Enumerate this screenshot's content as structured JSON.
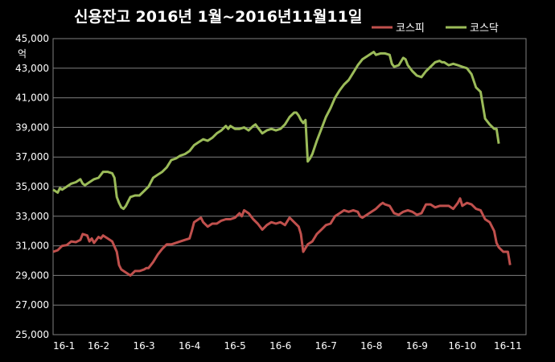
{
  "chart_data": {
    "type": "line",
    "title": "신용잔고  2016년 1월~2016년11월11일",
    "ylabel": "억",
    "xlabel": "",
    "ylim": [
      25000,
      45000
    ],
    "yticks": [
      25000,
      27000,
      29000,
      31000,
      33000,
      35000,
      37000,
      39000,
      41000,
      43000,
      45000
    ],
    "ytick_labels": [
      "25,000",
      "27,000",
      "29,000",
      "31,000",
      "33,000",
      "35,000",
      "37,000",
      "39,000",
      "41,000",
      "43,000",
      "45,000"
    ],
    "x_categories": [
      "16-1",
      "16-2",
      "16-3",
      "16-4",
      "16-5",
      "16-6",
      "16-7",
      "16-8",
      "16-9",
      "16-10",
      "16-11"
    ],
    "x_range": [
      0,
      10.4
    ],
    "grid": true,
    "legend_position": "top-right",
    "background_color": "#000000",
    "grid_color": "#7f7f7f",
    "text_color": "#ffffff",
    "series": [
      {
        "name": "코스피",
        "color": "#c0504d",
        "points": [
          [
            0.0,
            30600
          ],
          [
            0.1,
            30700
          ],
          [
            0.2,
            31000
          ],
          [
            0.3,
            31050
          ],
          [
            0.4,
            31300
          ],
          [
            0.5,
            31250
          ],
          [
            0.6,
            31400
          ],
          [
            0.65,
            31800
          ],
          [
            0.75,
            31700
          ],
          [
            0.8,
            31300
          ],
          [
            0.85,
            31500
          ],
          [
            0.9,
            31200
          ],
          [
            1.0,
            31600
          ],
          [
            1.05,
            31500
          ],
          [
            1.1,
            31700
          ],
          [
            1.2,
            31500
          ],
          [
            1.3,
            31300
          ],
          [
            1.4,
            30600
          ],
          [
            1.45,
            29700
          ],
          [
            1.5,
            29400
          ],
          [
            1.6,
            29200
          ],
          [
            1.7,
            29000
          ],
          [
            1.8,
            29300
          ],
          [
            1.9,
            29300
          ],
          [
            2.0,
            29400
          ],
          [
            2.05,
            29500
          ],
          [
            2.1,
            29500
          ],
          [
            2.2,
            29900
          ],
          [
            2.3,
            30400
          ],
          [
            2.4,
            30800
          ],
          [
            2.5,
            31100
          ],
          [
            2.6,
            31100
          ],
          [
            2.7,
            31200
          ],
          [
            2.8,
            31300
          ],
          [
            2.9,
            31400
          ],
          [
            3.0,
            31500
          ],
          [
            3.05,
            32000
          ],
          [
            3.1,
            32600
          ],
          [
            3.2,
            32800
          ],
          [
            3.25,
            32900
          ],
          [
            3.3,
            32600
          ],
          [
            3.4,
            32300
          ],
          [
            3.5,
            32500
          ],
          [
            3.6,
            32500
          ],
          [
            3.7,
            32700
          ],
          [
            3.8,
            32800
          ],
          [
            3.9,
            32800
          ],
          [
            4.0,
            32900
          ],
          [
            4.1,
            33200
          ],
          [
            4.15,
            33000
          ],
          [
            4.2,
            33400
          ],
          [
            4.3,
            33200
          ],
          [
            4.4,
            32800
          ],
          [
            4.5,
            32500
          ],
          [
            4.6,
            32100
          ],
          [
            4.7,
            32400
          ],
          [
            4.8,
            32600
          ],
          [
            4.9,
            32500
          ],
          [
            5.0,
            32600
          ],
          [
            5.1,
            32400
          ],
          [
            5.2,
            32900
          ],
          [
            5.3,
            32600
          ],
          [
            5.4,
            32300
          ],
          [
            5.45,
            31800
          ],
          [
            5.5,
            30600
          ],
          [
            5.6,
            31100
          ],
          [
            5.7,
            31300
          ],
          [
            5.8,
            31800
          ],
          [
            5.9,
            32100
          ],
          [
            6.0,
            32400
          ],
          [
            6.1,
            32500
          ],
          [
            6.2,
            33000
          ],
          [
            6.3,
            33200
          ],
          [
            6.4,
            33400
          ],
          [
            6.5,
            33300
          ],
          [
            6.6,
            33400
          ],
          [
            6.7,
            33300
          ],
          [
            6.75,
            33000
          ],
          [
            6.8,
            32900
          ],
          [
            6.9,
            33100
          ],
          [
            7.0,
            33300
          ],
          [
            7.1,
            33500
          ],
          [
            7.2,
            33800
          ],
          [
            7.25,
            33900
          ],
          [
            7.3,
            33800
          ],
          [
            7.4,
            33700
          ],
          [
            7.5,
            33200
          ],
          [
            7.6,
            33100
          ],
          [
            7.7,
            33300
          ],
          [
            7.8,
            33400
          ],
          [
            7.9,
            33300
          ],
          [
            8.0,
            33100
          ],
          [
            8.1,
            33200
          ],
          [
            8.2,
            33800
          ],
          [
            8.3,
            33800
          ],
          [
            8.4,
            33600
          ],
          [
            8.5,
            33700
          ],
          [
            8.6,
            33700
          ],
          [
            8.7,
            33700
          ],
          [
            8.8,
            33500
          ],
          [
            8.9,
            33900
          ],
          [
            8.95,
            34200
          ],
          [
            9.0,
            33700
          ],
          [
            9.1,
            33900
          ],
          [
            9.2,
            33800
          ],
          [
            9.3,
            33500
          ],
          [
            9.4,
            33400
          ],
          [
            9.5,
            32800
          ],
          [
            9.6,
            32600
          ],
          [
            9.7,
            32000
          ],
          [
            9.75,
            31200
          ],
          [
            9.8,
            30900
          ],
          [
            9.9,
            30600
          ],
          [
            10.0,
            30600
          ],
          [
            10.05,
            29700
          ]
        ]
      },
      {
        "name": "코스닥",
        "color": "#9bbb59",
        "points": [
          [
            0.0,
            34800
          ],
          [
            0.1,
            34600
          ],
          [
            0.15,
            34900
          ],
          [
            0.2,
            34800
          ],
          [
            0.3,
            35000
          ],
          [
            0.4,
            35200
          ],
          [
            0.5,
            35300
          ],
          [
            0.6,
            35500
          ],
          [
            0.65,
            35200
          ],
          [
            0.7,
            35100
          ],
          [
            0.8,
            35300
          ],
          [
            0.9,
            35500
          ],
          [
            1.0,
            35600
          ],
          [
            1.1,
            36000
          ],
          [
            1.2,
            36000
          ],
          [
            1.3,
            35900
          ],
          [
            1.35,
            35600
          ],
          [
            1.4,
            34300
          ],
          [
            1.45,
            33900
          ],
          [
            1.5,
            33600
          ],
          [
            1.55,
            33500
          ],
          [
            1.6,
            33700
          ],
          [
            1.7,
            34300
          ],
          [
            1.8,
            34400
          ],
          [
            1.9,
            34400
          ],
          [
            2.0,
            34700
          ],
          [
            2.1,
            35000
          ],
          [
            2.2,
            35600
          ],
          [
            2.3,
            35800
          ],
          [
            2.4,
            36000
          ],
          [
            2.5,
            36300
          ],
          [
            2.6,
            36800
          ],
          [
            2.7,
            36900
          ],
          [
            2.8,
            37100
          ],
          [
            2.9,
            37200
          ],
          [
            3.0,
            37400
          ],
          [
            3.1,
            37800
          ],
          [
            3.2,
            38000
          ],
          [
            3.3,
            38200
          ],
          [
            3.4,
            38100
          ],
          [
            3.5,
            38300
          ],
          [
            3.6,
            38600
          ],
          [
            3.7,
            38800
          ],
          [
            3.8,
            39100
          ],
          [
            3.85,
            38900
          ],
          [
            3.9,
            39100
          ],
          [
            4.0,
            38900
          ],
          [
            4.1,
            38900
          ],
          [
            4.2,
            39000
          ],
          [
            4.3,
            38800
          ],
          [
            4.4,
            39100
          ],
          [
            4.45,
            39200
          ],
          [
            4.5,
            39000
          ],
          [
            4.6,
            38600
          ],
          [
            4.7,
            38800
          ],
          [
            4.8,
            38900
          ],
          [
            4.9,
            38800
          ],
          [
            5.0,
            38900
          ],
          [
            5.1,
            39200
          ],
          [
            5.2,
            39700
          ],
          [
            5.3,
            40000
          ],
          [
            5.35,
            40000
          ],
          [
            5.4,
            39800
          ],
          [
            5.45,
            39500
          ],
          [
            5.5,
            39300
          ],
          [
            5.55,
            39500
          ],
          [
            5.6,
            36700
          ],
          [
            5.65,
            36900
          ],
          [
            5.7,
            37200
          ],
          [
            5.8,
            38100
          ],
          [
            5.9,
            38900
          ],
          [
            6.0,
            39700
          ],
          [
            6.1,
            40300
          ],
          [
            6.2,
            41000
          ],
          [
            6.3,
            41500
          ],
          [
            6.4,
            41900
          ],
          [
            6.5,
            42200
          ],
          [
            6.6,
            42700
          ],
          [
            6.7,
            43200
          ],
          [
            6.8,
            43600
          ],
          [
            6.9,
            43800
          ],
          [
            7.0,
            44000
          ],
          [
            7.05,
            44100
          ],
          [
            7.1,
            43900
          ],
          [
            7.2,
            44000
          ],
          [
            7.3,
            44000
          ],
          [
            7.4,
            43900
          ],
          [
            7.45,
            43300
          ],
          [
            7.5,
            43100
          ],
          [
            7.6,
            43200
          ],
          [
            7.7,
            43700
          ],
          [
            7.75,
            43600
          ],
          [
            7.8,
            43200
          ],
          [
            7.9,
            42800
          ],
          [
            8.0,
            42500
          ],
          [
            8.1,
            42400
          ],
          [
            8.2,
            42800
          ],
          [
            8.3,
            43100
          ],
          [
            8.4,
            43400
          ],
          [
            8.5,
            43500
          ],
          [
            8.55,
            43400
          ],
          [
            8.6,
            43400
          ],
          [
            8.7,
            43200
          ],
          [
            8.8,
            43300
          ],
          [
            8.9,
            43200
          ],
          [
            9.0,
            43100
          ],
          [
            9.1,
            43000
          ],
          [
            9.2,
            42600
          ],
          [
            9.3,
            41700
          ],
          [
            9.4,
            41400
          ],
          [
            9.5,
            39600
          ],
          [
            9.6,
            39200
          ],
          [
            9.7,
            38900
          ],
          [
            9.75,
            38900
          ],
          [
            9.8,
            37900
          ]
        ]
      }
    ]
  }
}
